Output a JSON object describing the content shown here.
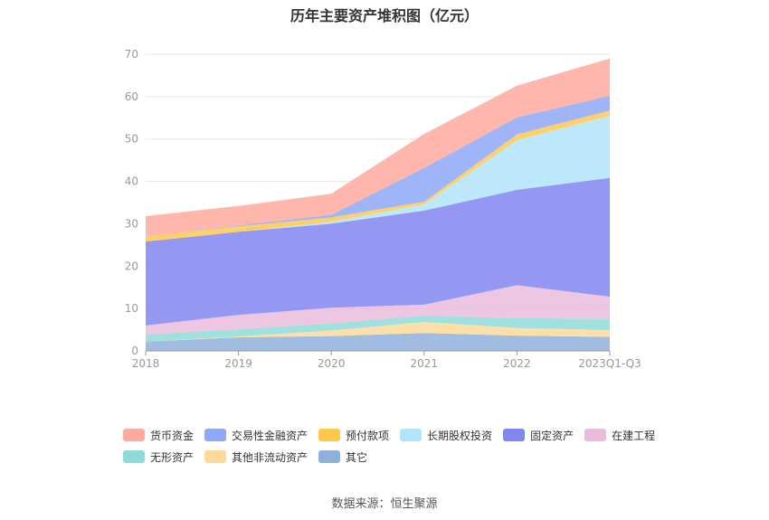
{
  "chart_data": {
    "type": "area",
    "stacked": true,
    "title": "历年主要资产堆积图（亿元）",
    "categories": [
      "2018",
      "2019",
      "2020",
      "2021",
      "2022",
      "2023Q1-Q3"
    ],
    "ylim": [
      0,
      70
    ],
    "yticks": [
      0,
      10,
      20,
      30,
      40,
      50,
      60,
      70
    ],
    "grid": true,
    "legend_position": "bottom",
    "series": [
      {
        "name": "其它",
        "color": "#8fb0db",
        "values": [
          2.2,
          3.2,
          3.5,
          4.2,
          3.6,
          3.3
        ]
      },
      {
        "name": "其他非流动资产",
        "color": "#ffd99a",
        "values": [
          0.0,
          0.2,
          1.3,
          2.6,
          1.8,
          1.6
        ]
      },
      {
        "name": "无形资产",
        "color": "#8fdbd9",
        "values": [
          1.7,
          1.7,
          1.7,
          1.5,
          2.3,
          2.7
        ]
      },
      {
        "name": "在建工程",
        "color": "#eabcdc",
        "values": [
          2.1,
          3.4,
          3.7,
          2.6,
          7.8,
          5.2
        ]
      },
      {
        "name": "固定资产",
        "color": "#8286f0",
        "values": [
          19.8,
          19.6,
          19.8,
          22.2,
          22.5,
          28.0
        ]
      },
      {
        "name": "长期股权投资",
        "color": "#b1e3fa",
        "values": [
          0.0,
          0.0,
          0.5,
          1.5,
          11.8,
          14.7
        ]
      },
      {
        "name": "预付款项",
        "color": "#ffc84a",
        "values": [
          1.2,
          1.3,
          1.0,
          0.6,
          1.3,
          1.2
        ]
      },
      {
        "name": "交易性金融资产",
        "color": "#8fa8f7",
        "values": [
          0.0,
          0.2,
          0.6,
          8.0,
          4.0,
          3.5
        ]
      },
      {
        "name": "货币资金",
        "color": "#ffa99f",
        "values": [
          4.8,
          4.6,
          5.0,
          8.0,
          7.5,
          8.8
        ]
      }
    ]
  },
  "legend": [
    {
      "label": "货币资金",
      "color": "#ffa99f"
    },
    {
      "label": "交易性金融资产",
      "color": "#8fa8f7"
    },
    {
      "label": "预付款项",
      "color": "#ffc84a"
    },
    {
      "label": "长期股权投资",
      "color": "#b1e3fa"
    },
    {
      "label": "固定资产",
      "color": "#8286f0"
    },
    {
      "label": "在建工程",
      "color": "#eabcdc"
    },
    {
      "label": "无形资产",
      "color": "#8fdbd9"
    },
    {
      "label": "其他非流动资产",
      "color": "#ffd99a"
    },
    {
      "label": "其它",
      "color": "#8fb0db"
    }
  ],
  "source": "数据来源：恒生聚源"
}
